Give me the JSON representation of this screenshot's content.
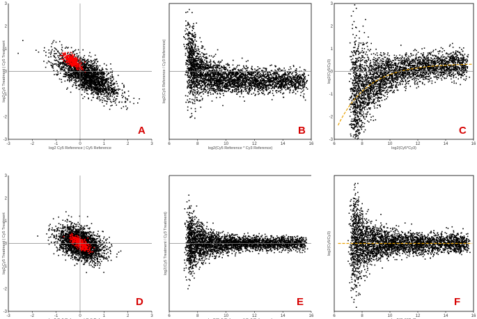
{
  "colors": {
    "points": "#000000",
    "highlight": "#ff0000",
    "fit": "#e8a000",
    "label": "#d60000",
    "axis": "#000000",
    "ref": "#888888"
  },
  "chart_data": [
    {
      "panel": "A",
      "type": "scatter",
      "label": "A",
      "xlabel": "log2 Cy5 Reference | Cy5 Reference",
      "ylabel": "log2 Cy5 Treatment | Cy5 Treatment",
      "xlim": [
        -3,
        3
      ],
      "ylim": [
        -3,
        3
      ],
      "xticks": [
        "-3",
        "-2",
        "-1",
        "0",
        "1",
        "2",
        "3"
      ],
      "yticks": [
        "-3",
        "-2",
        "-1",
        "0",
        "1",
        "2",
        "3"
      ],
      "ref_x": 0,
      "ref_y": 0,
      "cloud": {
        "center": [
          0.3,
          -0.2
        ],
        "slope": -0.7,
        "sd_major": 0.75,
        "sd_minor": 0.3,
        "n": 2200
      },
      "highlight": {
        "center": [
          -0.3,
          0.45
        ],
        "slope": -0.8,
        "sd_major": 0.22,
        "sd_minor": 0.1,
        "n": 320
      },
      "fit": null
    },
    {
      "panel": "B",
      "type": "scatter",
      "label": "B",
      "xlabel": "log2(Cy5 Reference * Cy3 Reference)",
      "ylabel": "log2(Cy5 Reference / Cy3 Reference)",
      "xlim": [
        5,
        16
      ],
      "ylim": [
        -4,
        4
      ],
      "xticks": [
        "6",
        "8",
        "10",
        "12",
        "14",
        "16"
      ],
      "yticks": [],
      "ref_y": 0,
      "ma": {
        "offset": 0.7,
        "decay": 1.0,
        "tail": -0.55,
        "spread_base": 0.35,
        "spread_low": 0.9,
        "n": 3200
      },
      "fit": null
    },
    {
      "panel": "C",
      "type": "scatter",
      "label": "C",
      "xlabel": "log2(Cy5*Cy3)",
      "ylabel": "log2(Cy5/Cy3)",
      "xlim": [
        5,
        16
      ],
      "ylim": [
        -3,
        3
      ],
      "xticks": [
        "6",
        "8",
        "10",
        "12",
        "14",
        "16"
      ],
      "yticks": [
        "-3",
        "-2",
        "-1",
        "0",
        "1",
        "2",
        "3"
      ],
      "ref_y": 0,
      "ma": {
        "offset": -1.3,
        "decay": 0.42,
        "tail": 0.35,
        "spread_base": 0.3,
        "spread_low": 1.3,
        "n": 3200
      },
      "fit": {
        "offset": -1.3,
        "decay": 0.42,
        "tail": 0.35
      }
    },
    {
      "panel": "D",
      "type": "scatter",
      "label": "D",
      "xlabel": "log2 Cy5 Reference | Cy5 Reference",
      "ylabel": "log2 Cy5 Treatment | Cy5 Treatment",
      "xlim": [
        -3,
        3
      ],
      "ylim": [
        -3,
        3
      ],
      "xticks": [
        "-3",
        "-2",
        "-1",
        "0",
        "1",
        "2",
        "3"
      ],
      "yticks": [
        "-3",
        "-2",
        "-1",
        "0",
        "1",
        "2",
        "3"
      ],
      "ref_x": 0,
      "ref_y": 0,
      "cloud": {
        "center": [
          0.0,
          0.0
        ],
        "slope": -0.6,
        "sd_major": 0.5,
        "sd_minor": 0.3,
        "n": 2400
      },
      "highlight": {
        "center": [
          0.0,
          0.0
        ],
        "slope": -0.7,
        "sd_major": 0.25,
        "sd_minor": 0.1,
        "n": 340
      },
      "fit": null
    },
    {
      "panel": "E",
      "type": "scatter",
      "label": "E",
      "xlabel": "log2(Cy5 Reference * Cy3 Reference)",
      "ylabel": "log2(Cy5 Treatment / Cy3 Treatment)",
      "xlim": [
        5,
        16
      ],
      "ylim": [
        -4,
        4
      ],
      "xticks": [
        "6",
        "8",
        "10",
        "12",
        "14",
        "16"
      ],
      "yticks": [],
      "ref_y": 0,
      "ma": {
        "offset": 0.0,
        "decay": 1.0,
        "tail": 0.0,
        "spread_base": 0.2,
        "spread_low": 0.8,
        "n": 3200
      },
      "fit": null
    },
    {
      "panel": "F",
      "type": "scatter",
      "label": "F",
      "xlabel": "log2(Cy5*Cy3)",
      "ylabel": "log2(Cy5/Cy3)",
      "xlim": [
        5,
        16
      ],
      "ylim": [
        -3,
        3
      ],
      "xticks": [
        "6",
        "8",
        "10",
        "12",
        "14",
        "16"
      ],
      "yticks": [],
      "ref_y": null,
      "ma": {
        "offset": 0.0,
        "decay": 1.0,
        "tail": 0.0,
        "spread_base": 0.22,
        "spread_low": 0.9,
        "n": 3200
      },
      "fit": {
        "offset": 0.0,
        "decay": 1.0,
        "tail": 0.0
      }
    }
  ]
}
